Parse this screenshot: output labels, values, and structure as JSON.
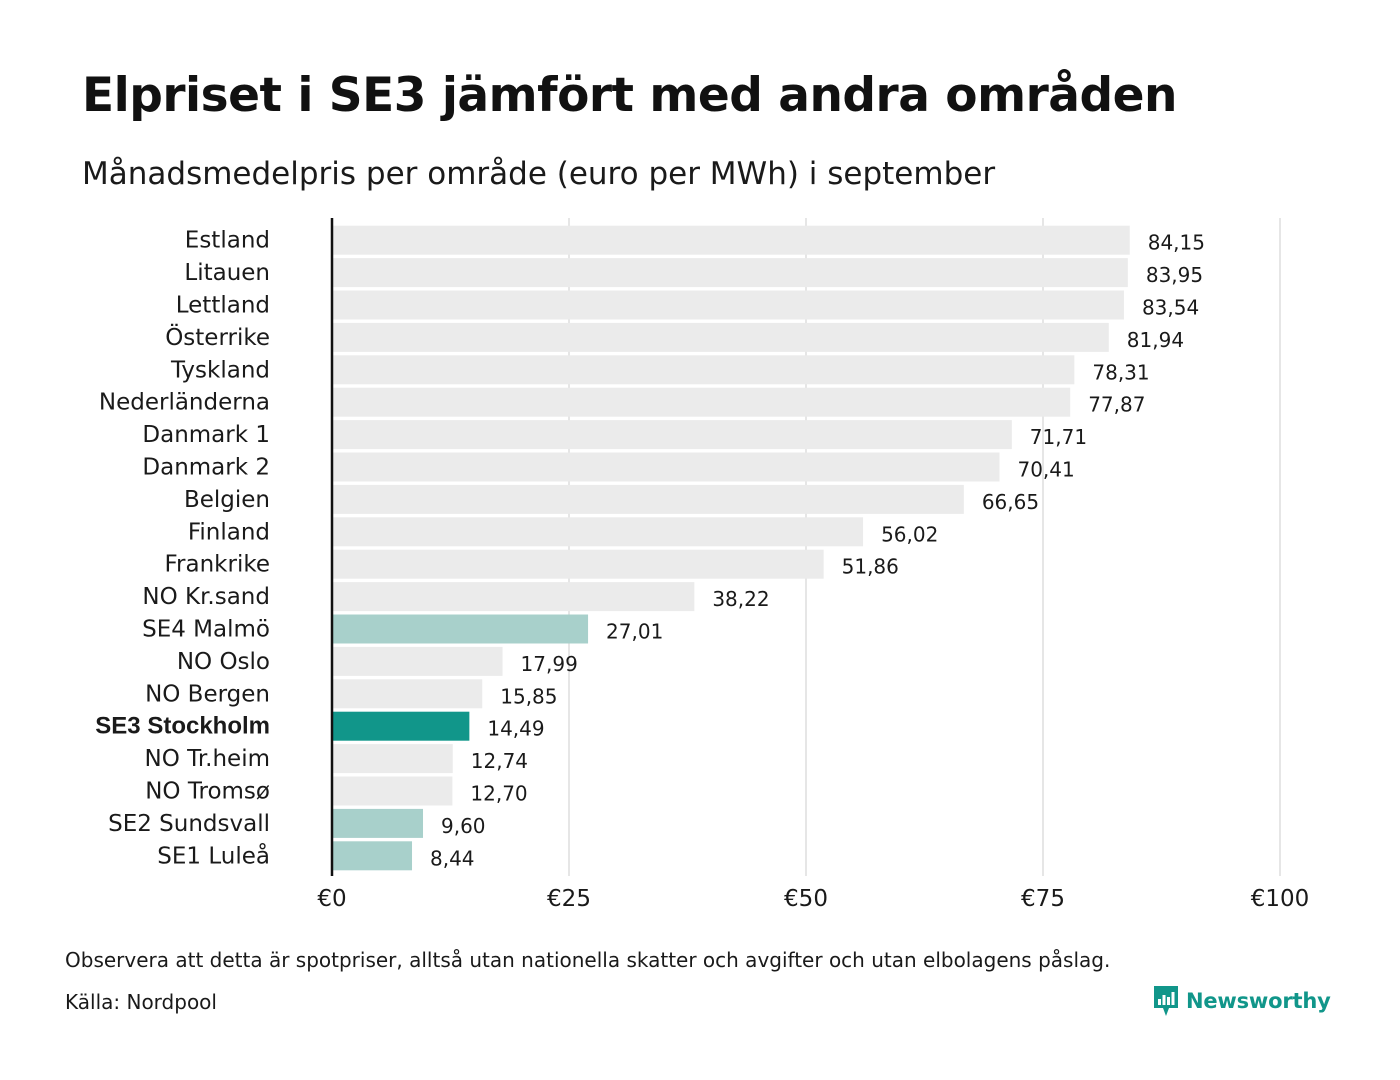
{
  "title": "Elpriset i SE3 jämfört med andra områden",
  "subtitle": "Månadsmedelpris per område (euro per MWh) i september",
  "footnote": "Observera att detta är spotpriser, alltså utan nationella skatter och avgifter och utan elbolagens påslag.",
  "source": "Källa: Nordpool",
  "brand": {
    "name": "Newsworthy",
    "icon": "newsworthy-logo-icon",
    "color": "#11968a"
  },
  "colors": {
    "default": "#ebebeb",
    "sweden": "#a8d0cb",
    "highlight": "#11968a",
    "grid": "#cccccc",
    "axis": "#111111"
  },
  "chart_data": {
    "type": "bar",
    "orientation": "horizontal",
    "xlim": [
      0,
      100
    ],
    "x_ticks": [
      0,
      25,
      50,
      75,
      100
    ],
    "x_tick_labels": [
      "€0",
      "€25",
      "€50",
      "€75",
      "€100"
    ],
    "grid": true,
    "categories": [
      "Estland",
      "Litauen",
      "Lettland",
      "Österrike",
      "Tyskland",
      "Nederländerna",
      "Danmark 1",
      "Danmark 2",
      "Belgien",
      "Finland",
      "Frankrike",
      "NO Kr.sand",
      "SE4 Malmö",
      "NO Oslo",
      "NO Bergen",
      "SE3 Stockholm",
      "NO Tr.heim",
      "NO Tromsø",
      "SE2 Sundsvall",
      "SE1 Luleå"
    ],
    "values": [
      84.15,
      83.95,
      83.54,
      81.94,
      78.31,
      77.87,
      71.71,
      70.41,
      66.65,
      56.02,
      51.86,
      38.22,
      27.01,
      17.99,
      15.85,
      14.49,
      12.74,
      12.7,
      9.6,
      8.44
    ],
    "value_labels": [
      "84,15",
      "83,95",
      "83,54",
      "81,94",
      "78,31",
      "77,87",
      "71,71",
      "70,41",
      "66,65",
      "56,02",
      "51,86",
      "38,22",
      "27,01",
      "17,99",
      "15,85",
      "14,49",
      "12,74",
      "12,70",
      "9,60",
      "8,44"
    ],
    "bar_groups": [
      "other",
      "other",
      "other",
      "other",
      "other",
      "other",
      "other",
      "other",
      "other",
      "other",
      "other",
      "other",
      "sweden",
      "other",
      "other",
      "highlight",
      "other",
      "other",
      "sweden",
      "sweden"
    ],
    "highlighted_category": "SE3 Stockholm"
  }
}
